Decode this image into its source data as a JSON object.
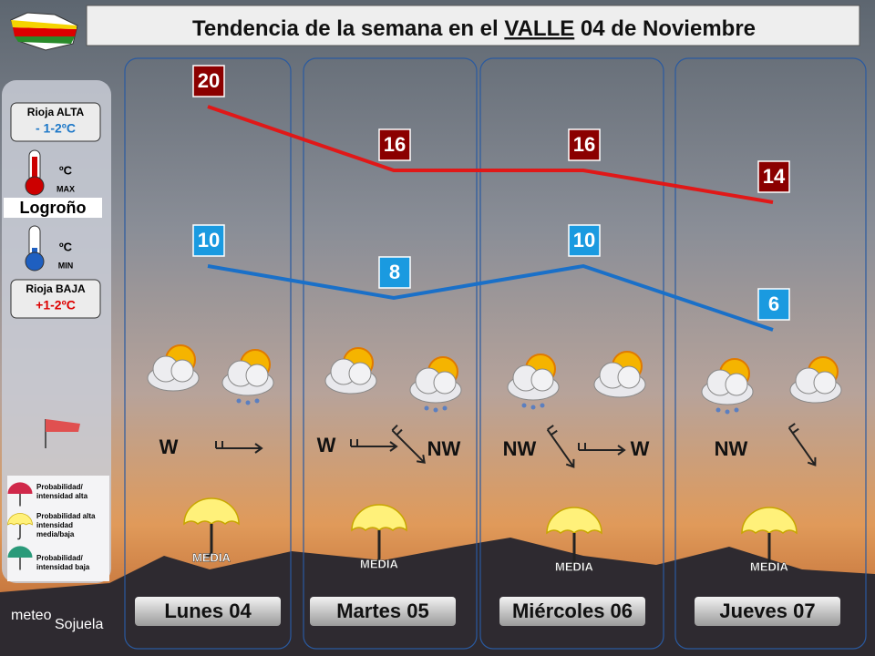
{
  "header": {
    "title_prefix": "Tendencia de la semana en el",
    "title_highlight": "VALLE",
    "title_suffix": "04 de Noviembre"
  },
  "sidebar": {
    "rioja_alta": {
      "label": "Rioja ALTA",
      "value": "- 1-2ºC"
    },
    "unit": "ºC",
    "max_label": "MAX",
    "city": "Logroño",
    "min_label": "MIN",
    "rioja_baja": {
      "label": "Rioja BAJA",
      "value": "+1-2ºC"
    },
    "legend": [
      "Probabilidad/ intensidad alta",
      "Probabilidad alta intensidad media/baja",
      "Probabilidad/ intensidad baja"
    ],
    "brand": [
      "meteo",
      "Sojuela"
    ]
  },
  "days": [
    {
      "name": "Lunes 04",
      "max": 20,
      "min": 10,
      "winds": [
        "W"
      ],
      "rain": "MEDIA"
    },
    {
      "name": "Martes 05",
      "max": 16,
      "min": 8,
      "winds": [
        "W",
        "NW"
      ],
      "rain": "MEDIA"
    },
    {
      "name": "Miércoles 06",
      "max": 16,
      "min": 10,
      "winds": [
        "NW",
        "W"
      ],
      "rain": "MEDIA"
    },
    {
      "name": "Jueves 07",
      "max": 14,
      "min": 6,
      "winds": [
        "NW"
      ],
      "rain": "MEDIA"
    }
  ]
}
